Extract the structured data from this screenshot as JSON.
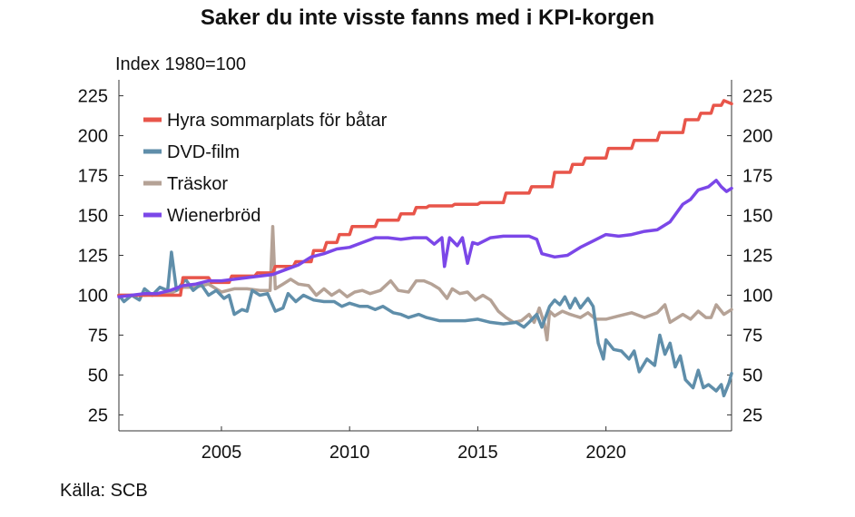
{
  "title": "Saker du inte visste fanns med i KPI-korgen",
  "source": "Källa: SCB",
  "chart_data": {
    "type": "line",
    "title": "Saker du inte visste fanns med i KPI-korgen",
    "ylabel": "Index 1980=100",
    "xlabel": "",
    "xlim": [
      2001,
      2024.9
    ],
    "ylim": [
      15,
      235
    ],
    "x_ticks": [
      2005,
      2010,
      2015,
      2020
    ],
    "y_ticks": [
      25,
      50,
      75,
      100,
      125,
      150,
      175,
      200,
      225
    ],
    "grid": false,
    "legend_position": "top-left",
    "dual_y_axis_same_scale": true,
    "series": [
      {
        "name": "Hyra sommarplats för båtar",
        "color": "#e8554a",
        "points": [
          [
            2001.0,
            100
          ],
          [
            2003.4,
            100
          ],
          [
            2003.5,
            111
          ],
          [
            2004.5,
            111
          ],
          [
            2004.6,
            108
          ],
          [
            2005.3,
            108
          ],
          [
            2005.4,
            112
          ],
          [
            2006.3,
            112
          ],
          [
            2006.4,
            114
          ],
          [
            2007.0,
            114
          ],
          [
            2007.1,
            118
          ],
          [
            2007.8,
            118
          ],
          [
            2007.9,
            121
          ],
          [
            2008.5,
            121
          ],
          [
            2008.6,
            128
          ],
          [
            2009.0,
            128
          ],
          [
            2009.1,
            133
          ],
          [
            2009.5,
            133
          ],
          [
            2009.6,
            138
          ],
          [
            2010.0,
            138
          ],
          [
            2010.1,
            143
          ],
          [
            2011.0,
            143
          ],
          [
            2011.1,
            147
          ],
          [
            2011.9,
            147
          ],
          [
            2012.0,
            151
          ],
          [
            2012.5,
            151
          ],
          [
            2012.6,
            155
          ],
          [
            2013.0,
            155
          ],
          [
            2013.1,
            156
          ],
          [
            2014.0,
            156
          ],
          [
            2014.1,
            157
          ],
          [
            2015.0,
            157
          ],
          [
            2015.1,
            158
          ],
          [
            2016.0,
            158
          ],
          [
            2016.1,
            164
          ],
          [
            2017.0,
            164
          ],
          [
            2017.1,
            168
          ],
          [
            2017.9,
            168
          ],
          [
            2018.0,
            177
          ],
          [
            2018.6,
            177
          ],
          [
            2018.7,
            182
          ],
          [
            2019.1,
            182
          ],
          [
            2019.2,
            186
          ],
          [
            2020.0,
            186
          ],
          [
            2020.1,
            192
          ],
          [
            2021.0,
            192
          ],
          [
            2021.1,
            197
          ],
          [
            2022.0,
            197
          ],
          [
            2022.1,
            202
          ],
          [
            2023.0,
            202
          ],
          [
            2023.1,
            210
          ],
          [
            2023.6,
            210
          ],
          [
            2023.7,
            214
          ],
          [
            2024.1,
            214
          ],
          [
            2024.2,
            219
          ],
          [
            2024.5,
            219
          ],
          [
            2024.6,
            222
          ],
          [
            2024.9,
            220
          ]
        ]
      },
      {
        "name": "DVD-film",
        "color": "#5f8eaa",
        "points": [
          [
            2001.0,
            100
          ],
          [
            2001.2,
            96
          ],
          [
            2001.5,
            100
          ],
          [
            2001.8,
            97
          ],
          [
            2002.0,
            104
          ],
          [
            2002.3,
            100
          ],
          [
            2002.6,
            105
          ],
          [
            2002.9,
            103
          ],
          [
            2003.05,
            127
          ],
          [
            2003.25,
            103
          ],
          [
            2003.6,
            110
          ],
          [
            2003.9,
            103
          ],
          [
            2004.2,
            107
          ],
          [
            2004.5,
            100
          ],
          [
            2004.8,
            103
          ],
          [
            2005.1,
            98
          ],
          [
            2005.3,
            100
          ],
          [
            2005.5,
            88
          ],
          [
            2005.8,
            91
          ],
          [
            2006.0,
            90
          ],
          [
            2006.2,
            103
          ],
          [
            2006.5,
            100
          ],
          [
            2006.8,
            101
          ],
          [
            2007.1,
            90
          ],
          [
            2007.4,
            92
          ],
          [
            2007.6,
            101
          ],
          [
            2007.9,
            96
          ],
          [
            2008.2,
            100
          ],
          [
            2008.6,
            97
          ],
          [
            2009.0,
            96
          ],
          [
            2009.4,
            96
          ],
          [
            2009.7,
            93
          ],
          [
            2010.0,
            95
          ],
          [
            2010.4,
            93
          ],
          [
            2010.7,
            93
          ],
          [
            2011.0,
            91
          ],
          [
            2011.3,
            93
          ],
          [
            2011.7,
            89
          ],
          [
            2012.0,
            88
          ],
          [
            2012.3,
            86
          ],
          [
            2012.7,
            88
          ],
          [
            2013.0,
            86
          ],
          [
            2013.5,
            84
          ],
          [
            2014.0,
            84
          ],
          [
            2014.5,
            84
          ],
          [
            2015.0,
            85
          ],
          [
            2015.5,
            83
          ],
          [
            2016.0,
            82
          ],
          [
            2016.5,
            83
          ],
          [
            2016.8,
            80
          ],
          [
            2017.0,
            83
          ],
          [
            2017.3,
            88
          ],
          [
            2017.5,
            80
          ],
          [
            2017.8,
            93
          ],
          [
            2018.0,
            97
          ],
          [
            2018.2,
            94
          ],
          [
            2018.4,
            99
          ],
          [
            2018.6,
            92
          ],
          [
            2018.8,
            98
          ],
          [
            2019.0,
            92
          ],
          [
            2019.3,
            98
          ],
          [
            2019.5,
            93
          ],
          [
            2019.7,
            70
          ],
          [
            2019.9,
            60
          ],
          [
            2020.0,
            72
          ],
          [
            2020.3,
            66
          ],
          [
            2020.6,
            65
          ],
          [
            2020.9,
            60
          ],
          [
            2021.1,
            65
          ],
          [
            2021.3,
            52
          ],
          [
            2021.6,
            60
          ],
          [
            2021.9,
            56
          ],
          [
            2022.1,
            75
          ],
          [
            2022.3,
            63
          ],
          [
            2022.5,
            70
          ],
          [
            2022.7,
            55
          ],
          [
            2022.9,
            62
          ],
          [
            2023.1,
            47
          ],
          [
            2023.4,
            42
          ],
          [
            2023.6,
            53
          ],
          [
            2023.8,
            42
          ],
          [
            2024.0,
            44
          ],
          [
            2024.3,
            40
          ],
          [
            2024.5,
            44
          ],
          [
            2024.6,
            37
          ],
          [
            2024.8,
            45
          ],
          [
            2024.9,
            51
          ]
        ]
      },
      {
        "name": "Träskor",
        "color": "#b5a296",
        "points": [
          [
            2001.0,
            100
          ],
          [
            2002.0,
            100
          ],
          [
            2003.0,
            101
          ],
          [
            2003.5,
            105
          ],
          [
            2004.0,
            105
          ],
          [
            2004.5,
            107
          ],
          [
            2005.0,
            102
          ],
          [
            2005.5,
            104
          ],
          [
            2006.0,
            104
          ],
          [
            2006.5,
            103
          ],
          [
            2006.9,
            103
          ],
          [
            2007.0,
            143
          ],
          [
            2007.1,
            104
          ],
          [
            2007.4,
            107
          ],
          [
            2007.7,
            110
          ],
          [
            2008.0,
            107
          ],
          [
            2008.4,
            106
          ],
          [
            2008.7,
            100
          ],
          [
            2009.0,
            104
          ],
          [
            2009.3,
            100
          ],
          [
            2009.6,
            103
          ],
          [
            2009.9,
            99
          ],
          [
            2010.2,
            102
          ],
          [
            2010.5,
            103
          ],
          [
            2010.8,
            101
          ],
          [
            2011.2,
            103
          ],
          [
            2011.6,
            109
          ],
          [
            2011.9,
            103
          ],
          [
            2012.3,
            102
          ],
          [
            2012.6,
            109
          ],
          [
            2012.9,
            109
          ],
          [
            2013.2,
            107
          ],
          [
            2013.5,
            104
          ],
          [
            2013.8,
            98
          ],
          [
            2014.0,
            104
          ],
          [
            2014.3,
            101
          ],
          [
            2014.6,
            102
          ],
          [
            2014.9,
            97
          ],
          [
            2015.2,
            100
          ],
          [
            2015.5,
            97
          ],
          [
            2015.8,
            90
          ],
          [
            2016.1,
            86
          ],
          [
            2016.4,
            83
          ],
          [
            2016.7,
            84
          ],
          [
            2017.0,
            88
          ],
          [
            2017.2,
            83
          ],
          [
            2017.4,
            92
          ],
          [
            2017.6,
            82
          ],
          [
            2017.7,
            72
          ],
          [
            2017.8,
            90
          ],
          [
            2018.0,
            87
          ],
          [
            2018.3,
            90
          ],
          [
            2018.6,
            88
          ],
          [
            2019.0,
            86
          ],
          [
            2019.3,
            89
          ],
          [
            2019.6,
            85
          ],
          [
            2020.0,
            85
          ],
          [
            2020.5,
            87
          ],
          [
            2021.0,
            89
          ],
          [
            2021.5,
            86
          ],
          [
            2022.0,
            89
          ],
          [
            2022.3,
            94
          ],
          [
            2022.5,
            83
          ],
          [
            2022.8,
            86
          ],
          [
            2023.0,
            88
          ],
          [
            2023.3,
            85
          ],
          [
            2023.6,
            90
          ],
          [
            2023.9,
            86
          ],
          [
            2024.1,
            86
          ],
          [
            2024.3,
            94
          ],
          [
            2024.6,
            88
          ],
          [
            2024.9,
            91
          ]
        ]
      },
      {
        "name": "Wienerbröd",
        "color": "#7b47e8",
        "points": [
          [
            2001.0,
            99
          ],
          [
            2001.5,
            100
          ],
          [
            2002.0,
            101
          ],
          [
            2002.5,
            101
          ],
          [
            2003.0,
            103
          ],
          [
            2003.5,
            106
          ],
          [
            2004.0,
            107
          ],
          [
            2004.5,
            109
          ],
          [
            2005.0,
            109
          ],
          [
            2005.5,
            110
          ],
          [
            2006.0,
            111
          ],
          [
            2006.5,
            112
          ],
          [
            2007.0,
            113
          ],
          [
            2007.5,
            116
          ],
          [
            2008.0,
            119
          ],
          [
            2008.5,
            124
          ],
          [
            2009.0,
            126
          ],
          [
            2009.5,
            129
          ],
          [
            2010.0,
            130
          ],
          [
            2010.5,
            133
          ],
          [
            2011.0,
            136
          ],
          [
            2011.5,
            136
          ],
          [
            2012.0,
            135
          ],
          [
            2012.5,
            136
          ],
          [
            2013.0,
            136
          ],
          [
            2013.3,
            132
          ],
          [
            2013.6,
            136
          ],
          [
            2013.7,
            118
          ],
          [
            2013.9,
            136
          ],
          [
            2014.2,
            131
          ],
          [
            2014.4,
            136
          ],
          [
            2014.6,
            120
          ],
          [
            2014.8,
            133
          ],
          [
            2015.0,
            132
          ],
          [
            2015.5,
            136
          ],
          [
            2016.0,
            137
          ],
          [
            2016.5,
            137
          ],
          [
            2017.0,
            137
          ],
          [
            2017.3,
            135
          ],
          [
            2017.5,
            126
          ],
          [
            2018.0,
            124
          ],
          [
            2018.5,
            125
          ],
          [
            2019.0,
            130
          ],
          [
            2019.5,
            134
          ],
          [
            2020.0,
            138
          ],
          [
            2020.5,
            137
          ],
          [
            2021.0,
            138
          ],
          [
            2021.5,
            140
          ],
          [
            2022.0,
            141
          ],
          [
            2022.5,
            146
          ],
          [
            2023.0,
            157
          ],
          [
            2023.3,
            160
          ],
          [
            2023.6,
            166
          ],
          [
            2024.0,
            168
          ],
          [
            2024.3,
            172
          ],
          [
            2024.5,
            168
          ],
          [
            2024.7,
            165
          ],
          [
            2024.9,
            167
          ]
        ]
      }
    ]
  }
}
